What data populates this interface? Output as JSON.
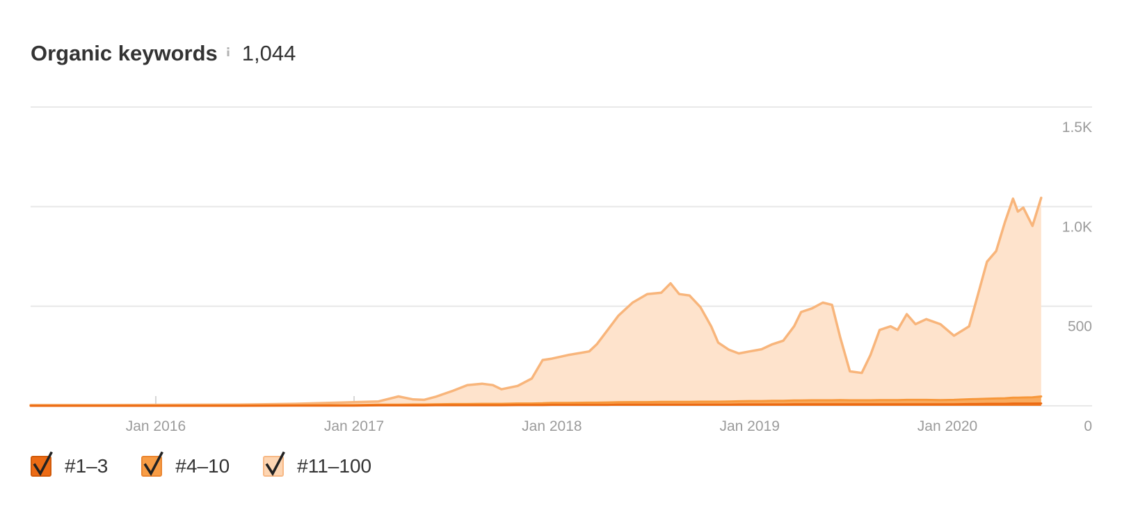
{
  "header": {
    "info_icon": "info-icon",
    "total": "1,044"
  },
  "colors": {
    "grid": "#e8e8e8",
    "tick": "#d6d6d6",
    "axis_label": "#9b9b9b",
    "checkmark": "#222222"
  },
  "chart_data": {
    "type": "area",
    "stacked": true,
    "title": "Organic keywords",
    "xlim": [
      "2015-05-15",
      "2020-09-24"
    ],
    "ylim": [
      0,
      1500
    ],
    "y_axis_position": "right",
    "grid": true,
    "legend": {
      "position": "bottom-left",
      "checked": [
        true,
        true,
        true
      ]
    },
    "x_ticks": [
      {
        "date": "2016-01-01",
        "label": "Jan 2016"
      },
      {
        "date": "2017-01-01",
        "label": "Jan 2017"
      },
      {
        "date": "2018-01-01",
        "label": "Jan 2018"
      },
      {
        "date": "2019-01-01",
        "label": "Jan 2019"
      },
      {
        "date": "2020-01-01",
        "label": "Jan 2020"
      }
    ],
    "y_ticks": [
      {
        "value": 0,
        "label": "0"
      },
      {
        "value": 500,
        "label": "500"
      },
      {
        "value": 1000,
        "label": "1.0K"
      },
      {
        "value": 1500,
        "label": "1.5K"
      }
    ],
    "x": [
      "2015-05-15",
      "2015-10-01",
      "2016-01-01",
      "2016-06-01",
      "2016-09-15",
      "2017-01-01",
      "2017-02-15",
      "2017-03-24",
      "2017-04-20",
      "2017-05-10",
      "2017-05-31",
      "2017-07-02",
      "2017-07-29",
      "2017-08-25",
      "2017-09-14",
      "2017-09-30",
      "2017-10-30",
      "2017-11-25",
      "2017-12-15",
      "2018-01-01",
      "2018-01-31",
      "2018-03-11",
      "2018-03-25",
      "2018-04-14",
      "2018-05-04",
      "2018-05-30",
      "2018-06-26",
      "2018-07-22",
      "2018-08-08",
      "2018-08-24",
      "2018-09-12",
      "2018-10-02",
      "2018-10-22",
      "2018-11-04",
      "2018-11-24",
      "2018-12-12",
      "2019-01-01",
      "2019-01-23",
      "2019-02-12",
      "2019-03-04",
      "2019-03-24",
      "2019-04-06",
      "2019-04-26",
      "2019-05-16",
      "2019-06-02",
      "2019-06-17",
      "2019-07-05",
      "2019-07-27",
      "2019-08-12",
      "2019-08-29",
      "2019-09-18",
      "2019-10-01",
      "2019-10-18",
      "2019-11-03",
      "2019-11-23",
      "2019-12-19",
      "2020-01-13",
      "2020-02-10",
      "2020-02-23",
      "2020-03-14",
      "2020-03-31",
      "2020-04-16",
      "2020-05-01",
      "2020-05-10",
      "2020-05-20",
      "2020-06-06",
      "2020-06-22"
    ],
    "series": [
      {
        "name": "#1–3",
        "color": "#ec6a12",
        "fill": "#ef7a26",
        "swatch": "#ec6b15",
        "swatch_border": "#d15a0a",
        "values": [
          0,
          0,
          0,
          0,
          1,
          1,
          2,
          2,
          2,
          2,
          3,
          3,
          3,
          3,
          3,
          3,
          4,
          4,
          4,
          5,
          5,
          5,
          5,
          5,
          6,
          6,
          6,
          6,
          6,
          6,
          6,
          6,
          6,
          6,
          6,
          7,
          7,
          7,
          7,
          7,
          8,
          8,
          8,
          8,
          8,
          8,
          8,
          8,
          8,
          8,
          8,
          8,
          8,
          8,
          8,
          8,
          8,
          9,
          9,
          10,
          10,
          10,
          11,
          11,
          11,
          11,
          12
        ]
      },
      {
        "name": "#4–10",
        "color": "#f7973a",
        "fill": "#f9ab5f",
        "swatch": "#f89d45",
        "swatch_border": "#ea8530",
        "values": [
          1,
          1,
          1,
          2,
          2,
          3,
          4,
          4,
          5,
          5,
          5,
          6,
          6,
          7,
          7,
          7,
          8,
          8,
          9,
          10,
          10,
          11,
          11,
          12,
          12,
          13,
          13,
          14,
          14,
          14,
          14,
          15,
          15,
          15,
          16,
          16,
          17,
          17,
          18,
          18,
          19,
          19,
          20,
          20,
          20,
          21,
          20,
          20,
          20,
          21,
          21,
          21,
          22,
          22,
          22,
          21,
          22,
          24,
          25,
          26,
          27,
          28,
          30,
          30,
          31,
          32,
          35
        ]
      },
      {
        "name": "#11–100",
        "color": "#f8b57b",
        "fill": "#fee3cc",
        "swatch": "#fdd5b2",
        "swatch_border": "#f7b885",
        "values": [
          3,
          3,
          4,
          4,
          7,
          14,
          16,
          41,
          25,
          23,
          37,
          66,
          95,
          101,
          94,
          73,
          88,
          125,
          217,
          222,
          240,
          257,
          293,
          364,
          435,
          499,
          542,
          548,
          595,
          541,
          534,
          475,
          378,
          296,
          259,
          240,
          249,
          260,
          284,
          302,
          372,
          444,
          461,
          490,
          479,
          316,
          145,
          137,
          227,
          352,
          370,
          352,
          430,
          380,
          405,
          381,
          322,
          366,
          491,
          687,
          740,
          883,
          999,
          934,
          953,
          860,
          997
        ]
      }
    ]
  }
}
